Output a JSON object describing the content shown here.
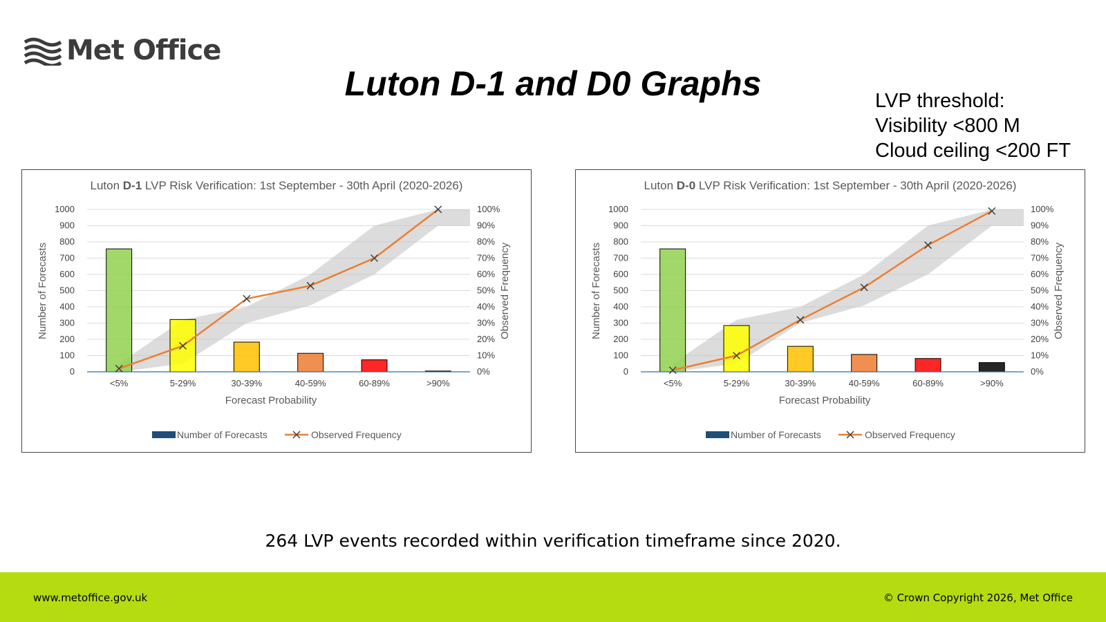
{
  "brand": {
    "name": "Met Office",
    "logo_icon": "met-office-wave-logo"
  },
  "title": "Luton D-1 and D0 Graphs",
  "threshold": {
    "line1": "LVP threshold:",
    "line2": "Visibility <800 M",
    "line3": "Cloud ceiling <200 FT"
  },
  "caption": "264 LVP events recorded within verification timeframe since 2020.",
  "footer": {
    "url": "www.metoffice.gov.uk",
    "copyright": "© Crown Copyright 2026, Met Office",
    "color": "#b5dc10"
  },
  "chart_data": [
    {
      "type": "bar",
      "title_prefix": "Luton ",
      "title_bold": "D-1",
      "title_suffix": " LVP Risk Verification: 1st September - 30th April (2020-2026)",
      "categories": [
        "<5%",
        "5-29%",
        "30-39%",
        "40-59%",
        "60-89%",
        ">90%"
      ],
      "xlabel": "Forecast Probability",
      "ylabel": "Number of Forecasts",
      "y2label": "Observed Frequency",
      "ylim": [
        0,
        1000
      ],
      "y2lim": [
        0,
        100
      ],
      "yticks": [
        "0",
        "100",
        "200",
        "300",
        "400",
        "500",
        "600",
        "700",
        "800",
        "900",
        "1000"
      ],
      "y2ticks": [
        "0%",
        "10%",
        "20%",
        "30%",
        "40%",
        "50%",
        "60%",
        "70%",
        "80%",
        "90%",
        "100%"
      ],
      "bar_colors": [
        "#92d050",
        "#ffff00",
        "#ffc000",
        "#ed7d31",
        "#ff0000",
        "#000000"
      ],
      "series": [
        {
          "name": "Number of Forecasts",
          "axis": "left",
          "values": [
            757,
            322,
            183,
            114,
            74,
            5
          ]
        },
        {
          "name": "Observed Frequency",
          "axis": "right",
          "values": [
            2,
            16,
            45,
            53,
            70,
            100
          ],
          "color": "#ed7d31"
        }
      ],
      "reliability_band": {
        "lower": [
          0,
          5,
          30,
          41,
          60,
          90
        ],
        "upper": [
          5,
          32,
          40,
          60,
          90,
          100
        ]
      },
      "legend": "bottom",
      "grid": true
    },
    {
      "type": "bar",
      "title_prefix": "Luton ",
      "title_bold": "D-0",
      "title_suffix": " LVP Risk Verification: 1st September - 30th April (2020-2026)",
      "categories": [
        "<5%",
        "5-29%",
        "30-39%",
        "40-59%",
        "60-89%",
        ">90%"
      ],
      "xlabel": "Forecast Probability",
      "ylabel": "Number of Forecasts",
      "y2label": "Observed Frequency",
      "ylim": [
        0,
        1000
      ],
      "y2lim": [
        0,
        100
      ],
      "yticks": [
        "0",
        "100",
        "200",
        "300",
        "400",
        "500",
        "600",
        "700",
        "800",
        "900",
        "1000"
      ],
      "y2ticks": [
        "0%",
        "10%",
        "20%",
        "30%",
        "40%",
        "50%",
        "60%",
        "70%",
        "80%",
        "90%",
        "100%"
      ],
      "bar_colors": [
        "#92d050",
        "#ffff00",
        "#ffc000",
        "#ed7d31",
        "#ff0000",
        "#000000"
      ],
      "series": [
        {
          "name": "Number of Forecasts",
          "axis": "left",
          "values": [
            757,
            285,
            157,
            107,
            82,
            57
          ]
        },
        {
          "name": "Observed Frequency",
          "axis": "right",
          "values": [
            1,
            10,
            32,
            52,
            78,
            99
          ],
          "color": "#ed7d31"
        }
      ],
      "reliability_band": {
        "lower": [
          0,
          5,
          30,
          41,
          60,
          90
        ],
        "upper": [
          5,
          32,
          40,
          60,
          90,
          100
        ]
      },
      "legend": "bottom",
      "grid": true
    }
  ]
}
